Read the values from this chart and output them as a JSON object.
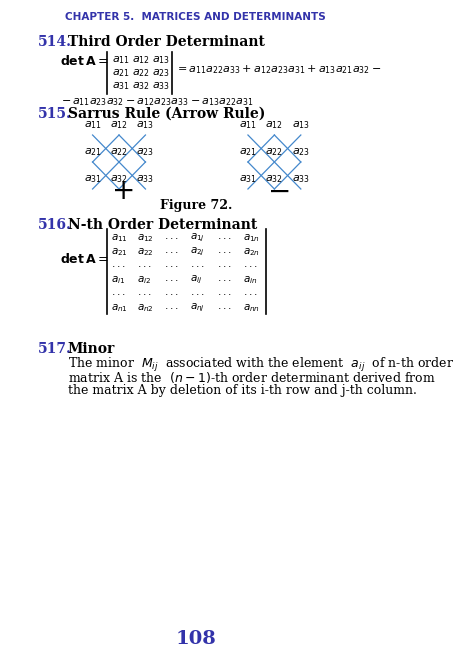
{
  "title": "CHAPTER 5.  MATRICES AND DETERMINANTS",
  "title_color": "#3333aa",
  "bg_color": "#ffffff",
  "text_color": "#000000",
  "number_color": "#3333aa",
  "page_number": "108",
  "figcaption": "Figure 72.",
  "section514_num": "514.",
  "section514_title": "Third Order Determinant",
  "section515_num": "515.",
  "section515_title": "Sarrus Rule (Arrow Rule)",
  "section516_num": "516.",
  "section516_title": "N-th Order Determinant",
  "section517_num": "517.",
  "section517_title": "Minor",
  "section517_line2": "matrix A is the  (n−1)-th order determinant derived from",
  "section517_line3": "the matrix A by deletion of its i-th row and j-th column."
}
